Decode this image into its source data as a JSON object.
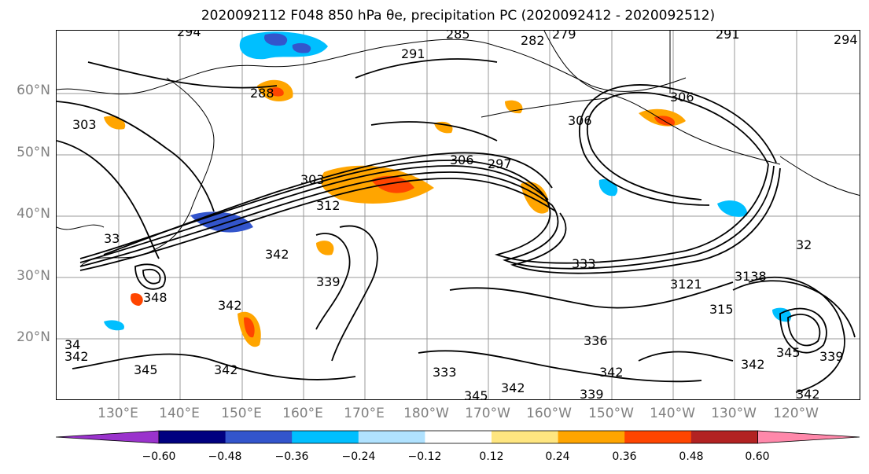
{
  "title": "2020092112 F048 850 hPa θe, precipitation PC (2020092412 - 2020092512)",
  "map": {
    "lat_labels": [
      "60°N",
      "50°N",
      "40°N",
      "30°N",
      "20°N"
    ],
    "lon_labels": [
      "130°E",
      "140°E",
      "150°E",
      "160°E",
      "170°E",
      "180°W",
      "170°W",
      "160°W",
      "150°W",
      "140°W",
      "130°W",
      "120°W"
    ],
    "contour_labels": [
      {
        "text": "294"
      },
      {
        "text": "285"
      },
      {
        "text": "282"
      },
      {
        "text": "279"
      },
      {
        "text": "291"
      },
      {
        "text": "291"
      },
      {
        "text": "294"
      },
      {
        "text": "288"
      },
      {
        "text": "303"
      },
      {
        "text": "306"
      },
      {
        "text": "306"
      },
      {
        "text": "303"
      },
      {
        "text": "312"
      },
      {
        "text": "297"
      },
      {
        "text": "306"
      },
      {
        "text": "342"
      },
      {
        "text": "339"
      },
      {
        "text": "348"
      },
      {
        "text": "342"
      },
      {
        "text": "345"
      },
      {
        "text": "342"
      },
      {
        "text": "333"
      },
      {
        "text": "336"
      },
      {
        "text": "342"
      },
      {
        "text": "345"
      },
      {
        "text": "342"
      },
      {
        "text": "339"
      },
      {
        "text": "333"
      },
      {
        "text": "3121"
      },
      {
        "text": "315"
      },
      {
        "text": "3138"
      },
      {
        "text": "32"
      },
      {
        "text": "345"
      },
      {
        "text": "342"
      },
      {
        "text": "33"
      },
      {
        "text": "34"
      },
      {
        "text": "342"
      },
      {
        "text": "339"
      },
      {
        "text": "342"
      }
    ],
    "colors": {
      "coast": "#000000",
      "grid": "#999999",
      "contour": "#000000"
    }
  },
  "colorbar": {
    "ticks": [
      "−0.60",
      "−0.48",
      "−0.36",
      "−0.24",
      "−0.12",
      "0.12",
      "0.24",
      "0.36",
      "0.48",
      "0.60"
    ],
    "colors": [
      "#9a33cc",
      "#000080",
      "#3355cc",
      "#00bfff",
      "#b0e2ff",
      "#ffffff",
      "#ffe680",
      "#ffa500",
      "#ff4500",
      "#b22222",
      "#ff88aa"
    ]
  }
}
